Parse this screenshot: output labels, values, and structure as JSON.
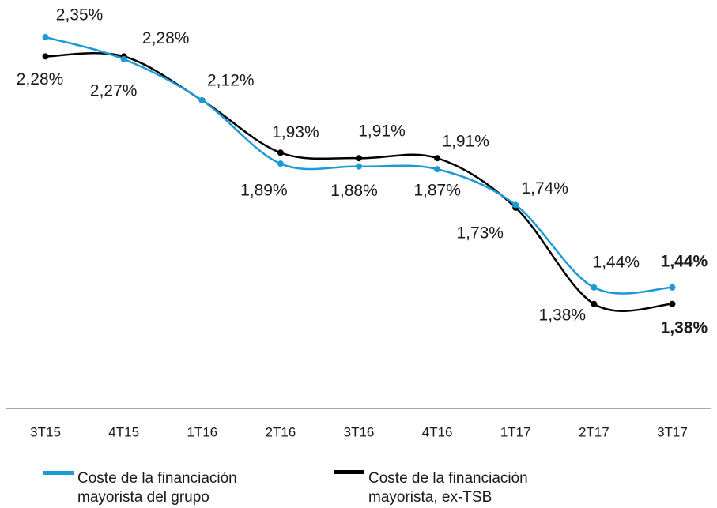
{
  "chart_data": {
    "type": "line",
    "categories": [
      "3T15",
      "4T15",
      "1T16",
      "2T16",
      "3T16",
      "4T16",
      "1T17",
      "2T17",
      "3T17"
    ],
    "series": [
      {
        "name": "Coste de la financiación mayorista del grupo",
        "color": "#1a9ad6",
        "values": [
          2.35,
          2.27,
          2.12,
          1.89,
          1.88,
          1.87,
          1.74,
          1.44,
          1.44
        ],
        "value_labels": [
          "2,35%",
          "2,27%",
          "2,12%",
          "1,89%",
          "1,88%",
          "1,87%",
          "1,74%",
          "1,44%",
          "1,44%"
        ]
      },
      {
        "name": "Coste de la financiación mayorista, ex-TSB",
        "color": "#000000",
        "values": [
          2.28,
          2.28,
          2.12,
          1.93,
          1.91,
          1.91,
          1.73,
          1.38,
          1.38
        ],
        "value_labels": [
          "2,28%",
          "2,28%",
          null,
          "1,93%",
          "1,91%",
          "1,91%",
          "1,73%",
          "1,38%",
          "1,38%"
        ]
      }
    ],
    "ylim": [
      1.0,
      2.5
    ],
    "legend": "bottom"
  }
}
